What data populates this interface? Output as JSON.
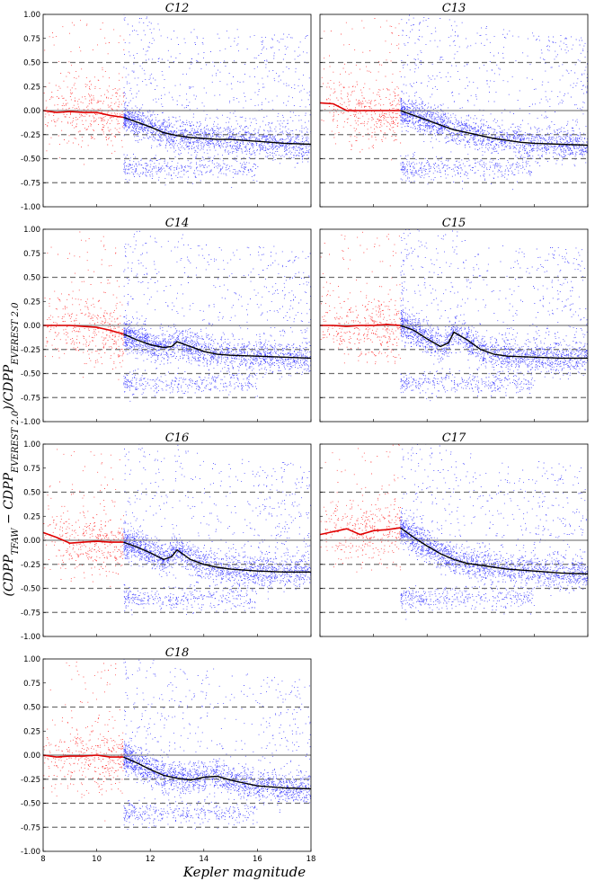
{
  "chart_data": {
    "type": "scatter",
    "xlabel": "Kepler magnitude",
    "ylabel": "(CDPP_TFAW − CDPP_EVEREST 2.0)/CDPP_EVEREST 2.0",
    "xlim": [
      8,
      18
    ],
    "ylim": [
      -1.0,
      1.0
    ],
    "xticks": [
      8,
      10,
      12,
      14,
      16,
      18
    ],
    "yticks": [
      "-1.00",
      "-0.75",
      "-0.50",
      "-0.25",
      "0.00",
      "0.25",
      "0.50",
      "0.75",
      "1.00"
    ],
    "reference_lines": {
      "solid": [
        0.0
      ],
      "dashed": [
        0.5,
        -0.25,
        -0.5,
        -0.75
      ]
    },
    "colors": {
      "bright_stars": "#ff2020",
      "faint_stars": "#1a1aff",
      "median_bright": "#e00000",
      "median_faint": "#000000",
      "solid_line": "#808080",
      "dashed_line": "#707070"
    },
    "magnitude_split": 11,
    "panels": [
      {
        "title": "C12",
        "median_bright": [
          [
            8,
            0
          ],
          [
            8.5,
            -0.02
          ],
          [
            9,
            -0.01
          ],
          [
            9.5,
            -0.02
          ],
          [
            10,
            -0.02
          ],
          [
            10.5,
            -0.05
          ],
          [
            11,
            -0.07
          ]
        ],
        "median_faint": [
          [
            11,
            -0.07
          ],
          [
            11.5,
            -0.12
          ],
          [
            12,
            -0.17
          ],
          [
            12.5,
            -0.23
          ],
          [
            13,
            -0.26
          ],
          [
            13.5,
            -0.28
          ],
          [
            14,
            -0.29
          ],
          [
            14.5,
            -0.3
          ],
          [
            15,
            -0.3
          ],
          [
            15.5,
            -0.31
          ],
          [
            16,
            -0.32
          ],
          [
            17,
            -0.34
          ],
          [
            18,
            -0.35
          ]
        ]
      },
      {
        "title": "C13",
        "median_bright": [
          [
            8,
            0.08
          ],
          [
            8.5,
            0.07
          ],
          [
            9,
            0.0
          ],
          [
            9.5,
            0.0
          ],
          [
            10,
            0.0
          ],
          [
            10.5,
            0.0
          ],
          [
            11,
            0.0
          ]
        ],
        "median_faint": [
          [
            11,
            0.0
          ],
          [
            11.5,
            -0.05
          ],
          [
            12,
            -0.1
          ],
          [
            12.5,
            -0.15
          ],
          [
            13,
            -0.2
          ],
          [
            13.5,
            -0.23
          ],
          [
            14,
            -0.26
          ],
          [
            14.5,
            -0.29
          ],
          [
            15,
            -0.31
          ],
          [
            15.5,
            -0.33
          ],
          [
            16,
            -0.34
          ],
          [
            17,
            -0.35
          ],
          [
            18,
            -0.36
          ]
        ]
      },
      {
        "title": "C14",
        "median_bright": [
          [
            8,
            0
          ],
          [
            8.5,
            0
          ],
          [
            9,
            0
          ],
          [
            9.5,
            -0.01
          ],
          [
            10,
            -0.02
          ],
          [
            10.5,
            -0.05
          ],
          [
            11,
            -0.09
          ]
        ],
        "median_faint": [
          [
            11,
            -0.09
          ],
          [
            11.5,
            -0.15
          ],
          [
            12,
            -0.2
          ],
          [
            12.5,
            -0.23
          ],
          [
            12.8,
            -0.22
          ],
          [
            13,
            -0.17
          ],
          [
            13.5,
            -0.22
          ],
          [
            14,
            -0.27
          ],
          [
            14.5,
            -0.3
          ],
          [
            15,
            -0.31
          ],
          [
            16,
            -0.32
          ],
          [
            17,
            -0.33
          ],
          [
            18,
            -0.34
          ]
        ]
      },
      {
        "title": "C15",
        "median_bright": [
          [
            8,
            0
          ],
          [
            8.5,
            0
          ],
          [
            9,
            -0.01
          ],
          [
            9.5,
            0
          ],
          [
            10,
            0.0
          ],
          [
            10.5,
            0.01
          ],
          [
            11,
            0.0
          ]
        ],
        "median_faint": [
          [
            11,
            0.0
          ],
          [
            11.5,
            -0.05
          ],
          [
            12,
            -0.14
          ],
          [
            12.5,
            -0.22
          ],
          [
            12.8,
            -0.18
          ],
          [
            13,
            -0.07
          ],
          [
            13.5,
            -0.15
          ],
          [
            14,
            -0.25
          ],
          [
            14.5,
            -0.3
          ],
          [
            15,
            -0.32
          ],
          [
            16,
            -0.33
          ],
          [
            17,
            -0.34
          ],
          [
            18,
            -0.34
          ]
        ]
      },
      {
        "title": "C16",
        "median_bright": [
          [
            8,
            0.08
          ],
          [
            8.5,
            0.03
          ],
          [
            9,
            -0.03
          ],
          [
            9.5,
            -0.02
          ],
          [
            10,
            -0.01
          ],
          [
            10.5,
            -0.02
          ],
          [
            11,
            -0.02
          ]
        ],
        "median_faint": [
          [
            11,
            -0.02
          ],
          [
            11.5,
            -0.07
          ],
          [
            12,
            -0.13
          ],
          [
            12.5,
            -0.2
          ],
          [
            12.8,
            -0.17
          ],
          [
            13,
            -0.1
          ],
          [
            13.5,
            -0.2
          ],
          [
            14,
            -0.25
          ],
          [
            14.5,
            -0.28
          ],
          [
            15,
            -0.3
          ],
          [
            16,
            -0.32
          ],
          [
            17,
            -0.33
          ],
          [
            18,
            -0.33
          ]
        ]
      },
      {
        "title": "C17",
        "median_bright": [
          [
            8,
            0.06
          ],
          [
            8.5,
            0.09
          ],
          [
            9,
            0.12
          ],
          [
            9.5,
            0.06
          ],
          [
            10,
            0.1
          ],
          [
            10.5,
            0.11
          ],
          [
            11,
            0.13
          ]
        ],
        "median_faint": [
          [
            11,
            0.13
          ],
          [
            11.5,
            0.03
          ],
          [
            12,
            -0.06
          ],
          [
            12.5,
            -0.14
          ],
          [
            13,
            -0.2
          ],
          [
            13.5,
            -0.24
          ],
          [
            14,
            -0.26
          ],
          [
            14.5,
            -0.28
          ],
          [
            15,
            -0.3
          ],
          [
            16,
            -0.32
          ],
          [
            17,
            -0.34
          ],
          [
            18,
            -0.35
          ]
        ]
      },
      {
        "title": "C18",
        "median_bright": [
          [
            8,
            0
          ],
          [
            8.5,
            -0.02
          ],
          [
            9,
            -0.01
          ],
          [
            9.5,
            -0.01
          ],
          [
            10,
            0.0
          ],
          [
            10.5,
            -0.02
          ],
          [
            11,
            -0.02
          ]
        ],
        "median_faint": [
          [
            11,
            -0.02
          ],
          [
            11.5,
            -0.08
          ],
          [
            12,
            -0.15
          ],
          [
            12.5,
            -0.21
          ],
          [
            13,
            -0.24
          ],
          [
            13.5,
            -0.26
          ],
          [
            14,
            -0.23
          ],
          [
            14.5,
            -0.22
          ],
          [
            15,
            -0.26
          ],
          [
            15.5,
            -0.29
          ],
          [
            16,
            -0.32
          ],
          [
            17,
            -0.34
          ],
          [
            18,
            -0.35
          ]
        ]
      }
    ]
  }
}
